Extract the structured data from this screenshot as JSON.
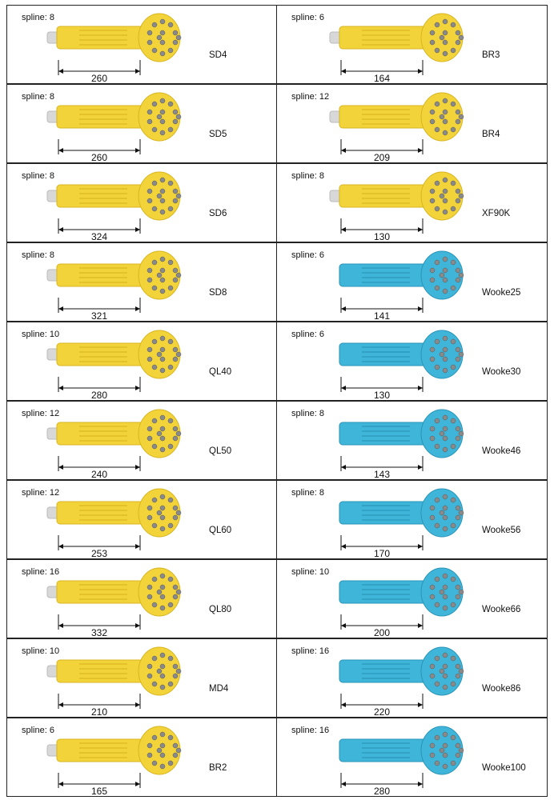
{
  "colors": {
    "yellow_body": "#f2d43a",
    "yellow_shade": "#d9b520",
    "blue_body": "#3fb6d9",
    "blue_shade": "#2a94b8",
    "shank_grey": "#d8d8d8",
    "button_grey": "#8a8a8a",
    "border": "#222222"
  },
  "left_items": [
    {
      "spline": "spline: 8",
      "model": "SD4",
      "length": "260",
      "color": "yellow"
    },
    {
      "spline": "spline: 8",
      "model": "SD5",
      "length": "260",
      "color": "yellow"
    },
    {
      "spline": "spline: 8",
      "model": "SD6",
      "length": "324",
      "color": "yellow"
    },
    {
      "spline": "spline: 8",
      "model": "SD8",
      "length": "321",
      "color": "yellow"
    },
    {
      "spline": "spline: 10",
      "model": "QL40",
      "length": "280",
      "color": "yellow"
    },
    {
      "spline": "spline: 12",
      "model": "QL50",
      "length": "240",
      "color": "yellow"
    },
    {
      "spline": "spline: 12",
      "model": "QL60",
      "length": "253",
      "color": "yellow"
    },
    {
      "spline": "spline: 16",
      "model": "QL80",
      "length": "332",
      "color": "yellow"
    },
    {
      "spline": "spline: 10",
      "model": "MD4",
      "length": "210",
      "color": "yellow"
    },
    {
      "spline": "spline: 6",
      "model": "BR2",
      "length": "165",
      "color": "yellow"
    }
  ],
  "right_items": [
    {
      "spline": "spline: 6",
      "model": "BR3",
      "length": "164",
      "color": "yellow"
    },
    {
      "spline": "spline: 12",
      "model": "BR4",
      "length": "209",
      "color": "yellow"
    },
    {
      "spline": "spline: 8",
      "model": "XF90K",
      "length": "130",
      "color": "yellow"
    },
    {
      "spline": "spline: 6",
      "model": "Wooke25",
      "length": "141",
      "color": "blue"
    },
    {
      "spline": "spline: 6",
      "model": "Wooke30",
      "length": "130",
      "color": "blue"
    },
    {
      "spline": "spline: 8",
      "model": "Wooke46",
      "length": "143",
      "color": "blue"
    },
    {
      "spline": "spline: 8",
      "model": "Wooke56",
      "length": "170",
      "color": "blue"
    },
    {
      "spline": "spline: 10",
      "model": "Wooke66",
      "length": "200",
      "color": "blue"
    },
    {
      "spline": "spline: 16",
      "model": "Wooke86",
      "length": "220",
      "color": "blue"
    },
    {
      "spline": "spline: 16",
      "model": "Wooke100",
      "length": "280",
      "color": "blue"
    }
  ]
}
